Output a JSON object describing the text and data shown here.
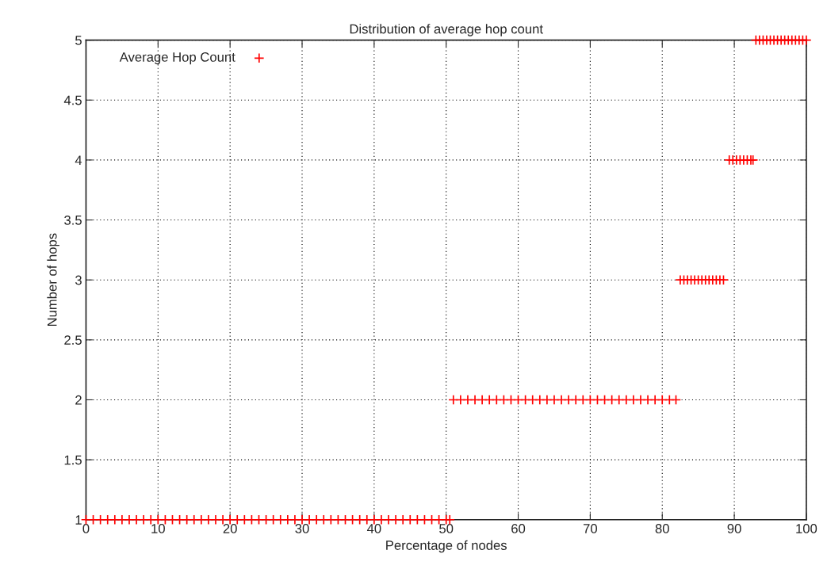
{
  "chart_data": {
    "type": "scatter",
    "title": "Distribution of average hop count",
    "xlabel": "Percentage of nodes",
    "ylabel": "Number of hops",
    "xlim": [
      0,
      100
    ],
    "xticks": [
      0,
      10,
      20,
      30,
      40,
      50,
      60,
      70,
      80,
      90,
      100
    ],
    "ylim": [
      1,
      5
    ],
    "yticks": [
      1,
      1.5,
      2,
      2.5,
      3,
      3.5,
      4,
      4.5,
      5
    ],
    "grid": true,
    "legend": "top left",
    "marker": "cross",
    "series": [
      {
        "name": "Average Hop Count",
        "color": "#ff0000",
        "x": [
          0,
          1,
          2,
          3,
          4,
          5,
          6,
          7,
          8,
          9,
          10,
          11,
          12,
          13,
          14,
          15,
          16,
          17,
          18,
          19,
          20,
          21,
          22,
          23,
          24,
          25,
          26,
          27,
          28,
          29,
          30,
          31,
          32,
          33,
          34,
          35,
          36,
          37,
          38,
          39,
          40,
          41,
          42,
          43,
          44,
          45,
          46,
          47,
          48,
          49,
          50,
          50.5,
          51,
          52,
          53,
          54,
          55,
          56,
          57,
          58,
          59,
          60,
          61,
          62,
          63,
          64,
          65,
          66,
          67,
          68,
          69,
          70,
          71,
          72,
          73,
          74,
          75,
          76,
          77,
          78,
          79,
          80,
          81,
          81.9,
          82.5,
          83,
          83.5,
          84,
          84.5,
          85,
          85.5,
          86,
          86.5,
          87,
          87.5,
          88,
          88.5,
          89.3,
          89.8,
          90.3,
          90.8,
          91.3,
          91.8,
          92.3,
          92.6,
          93,
          93.5,
          94,
          94.5,
          95,
          95.5,
          96,
          96.5,
          97,
          97.5,
          98,
          98.5,
          99,
          99.5,
          100
        ],
        "values": [
          1,
          1,
          1,
          1,
          1,
          1,
          1,
          1,
          1,
          1,
          1,
          1,
          1,
          1,
          1,
          1,
          1,
          1,
          1,
          1,
          1,
          1,
          1,
          1,
          1,
          1,
          1,
          1,
          1,
          1,
          1,
          1,
          1,
          1,
          1,
          1,
          1,
          1,
          1,
          1,
          1,
          1,
          1,
          1,
          1,
          1,
          1,
          1,
          1,
          1,
          1,
          1,
          2,
          2,
          2,
          2,
          2,
          2,
          2,
          2,
          2,
          2,
          2,
          2,
          2,
          2,
          2,
          2,
          2,
          2,
          2,
          2,
          2,
          2,
          2,
          2,
          2,
          2,
          2,
          2,
          2,
          2,
          2,
          2,
          3,
          3,
          3,
          3,
          3,
          3,
          3,
          3,
          3,
          3,
          3,
          3,
          3,
          4,
          4,
          4,
          4,
          4,
          4,
          4,
          4,
          5,
          5,
          5,
          5,
          5,
          5,
          5,
          5,
          5,
          5,
          5,
          5,
          5,
          5,
          5
        ]
      }
    ]
  }
}
